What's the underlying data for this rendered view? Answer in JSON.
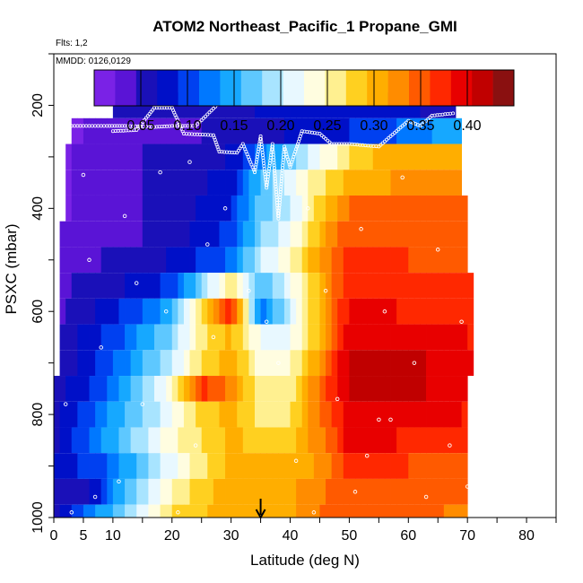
{
  "chart_data": {
    "type": "heatmap",
    "title": "ATOM2 Northeast_Pacific_1 Propane_GMI",
    "flights_label": "Flts: 1,2",
    "dates_label": "MMDD: 0126,0129",
    "xlabel": "Latitude (deg N)",
    "ylabel": "PSXC (mbar)",
    "xlim": [
      0,
      85
    ],
    "ylim": [
      1000,
      100
    ],
    "x_ticks": [
      0,
      5,
      10,
      20,
      30,
      40,
      50,
      60,
      70,
      80
    ],
    "y_ticks": [
      200,
      400,
      600,
      800,
      1000
    ],
    "colorbar": {
      "min": 0.0,
      "max": 0.45,
      "ticks": [
        0.05,
        0.1,
        0.15,
        0.2,
        0.25,
        0.3,
        0.35,
        0.4
      ],
      "tick_labels": [
        "0.05",
        "0.10",
        "0.15",
        "0.20",
        "0.25",
        "0.30",
        "0.35",
        "0.40"
      ],
      "colors": [
        "#7a22e6",
        "#5a14d6",
        "#1a10b8",
        "#0010c8",
        "#0040f0",
        "#0078ff",
        "#16a8ff",
        "#5ec8ff",
        "#a8e4ff",
        "#e8f8ff",
        "#fffde0",
        "#fff090",
        "#ffd020",
        "#ffae00",
        "#ff8c00",
        "#ff5a00",
        "#ff2800",
        "#e80000",
        "#c00000",
        "#8a1010"
      ]
    },
    "arrow_marker_latitude": 35,
    "pressure_levels": [
      200,
      250,
      300,
      350,
      400,
      450,
      500,
      550,
      600,
      650,
      700,
      750,
      800,
      850,
      900,
      950,
      1000
    ],
    "layers": [
      {
        "p": 200,
        "lat_range": [
          10,
          68
        ],
        "knots": [
          [
            10,
            0.06
          ],
          [
            20,
            0.05
          ],
          [
            30,
            0.06
          ],
          [
            40,
            0.08
          ],
          [
            50,
            0.09
          ],
          [
            60,
            0.07
          ],
          [
            68,
            0.06
          ]
        ]
      },
      {
        "p": 250,
        "lat_range": [
          3,
          69
        ],
        "knots": [
          [
            3,
            0.02
          ],
          [
            10,
            0.03
          ],
          [
            20,
            0.04
          ],
          [
            30,
            0.05
          ],
          [
            35,
            0.06
          ],
          [
            40,
            0.07
          ],
          [
            50,
            0.09
          ],
          [
            60,
            0.12
          ],
          [
            69,
            0.15
          ]
        ]
      },
      {
        "p": 300,
        "lat_range": [
          2,
          69
        ],
        "knots": [
          [
            2,
            0.02
          ],
          [
            10,
            0.04
          ],
          [
            20,
            0.05
          ],
          [
            30,
            0.07
          ],
          [
            35,
            0.12
          ],
          [
            40,
            0.17
          ],
          [
            45,
            0.22
          ],
          [
            50,
            0.27
          ],
          [
            55,
            0.3
          ],
          [
            60,
            0.3
          ],
          [
            69,
            0.3
          ]
        ]
      },
      {
        "p": 350,
        "lat_range": [
          2,
          69
        ],
        "knots": [
          [
            2,
            0.02
          ],
          [
            10,
            0.04
          ],
          [
            20,
            0.05
          ],
          [
            30,
            0.08
          ],
          [
            35,
            0.16
          ],
          [
            40,
            0.22
          ],
          [
            45,
            0.26
          ],
          [
            50,
            0.3
          ],
          [
            60,
            0.32
          ],
          [
            69,
            0.32
          ]
        ]
      },
      {
        "p": 400,
        "lat_range": [
          2,
          70
        ],
        "knots": [
          [
            2,
            0.02
          ],
          [
            10,
            0.04
          ],
          [
            20,
            0.05
          ],
          [
            30,
            0.09
          ],
          [
            35,
            0.17
          ],
          [
            40,
            0.2
          ],
          [
            45,
            0.28
          ],
          [
            50,
            0.34
          ],
          [
            60,
            0.35
          ],
          [
            70,
            0.34
          ]
        ]
      },
      {
        "p": 450,
        "lat_range": [
          1,
          70
        ],
        "knots": [
          [
            1,
            0.03
          ],
          [
            10,
            0.04
          ],
          [
            20,
            0.05
          ],
          [
            30,
            0.1
          ],
          [
            35,
            0.18
          ],
          [
            40,
            0.22
          ],
          [
            45,
            0.3
          ],
          [
            50,
            0.36
          ],
          [
            60,
            0.36
          ],
          [
            70,
            0.35
          ]
        ]
      },
      {
        "p": 500,
        "lat_range": [
          1,
          70
        ],
        "knots": [
          [
            1,
            0.03
          ],
          [
            10,
            0.05
          ],
          [
            20,
            0.07
          ],
          [
            30,
            0.12
          ],
          [
            35,
            0.2
          ],
          [
            40,
            0.24
          ],
          [
            45,
            0.32
          ],
          [
            50,
            0.37
          ],
          [
            60,
            0.36
          ],
          [
            70,
            0.35
          ]
        ]
      },
      {
        "p": 550,
        "lat_range": [
          1,
          71
        ],
        "knots": [
          [
            1,
            0.04
          ],
          [
            10,
            0.06
          ],
          [
            20,
            0.1
          ],
          [
            25,
            0.18
          ],
          [
            30,
            0.26
          ],
          [
            35,
            0.16
          ],
          [
            40,
            0.22
          ],
          [
            45,
            0.3
          ],
          [
            50,
            0.38
          ],
          [
            60,
            0.37
          ],
          [
            71,
            0.36
          ]
        ]
      },
      {
        "p": 600,
        "lat_range": [
          1,
          71
        ],
        "knots": [
          [
            1,
            0.04
          ],
          [
            10,
            0.08
          ],
          [
            20,
            0.15
          ],
          [
            25,
            0.28
          ],
          [
            30,
            0.38
          ],
          [
            35,
            0.12
          ],
          [
            40,
            0.2
          ],
          [
            45,
            0.3
          ],
          [
            50,
            0.39
          ],
          [
            60,
            0.38
          ],
          [
            71,
            0.36
          ]
        ]
      },
      {
        "p": 650,
        "lat_range": [
          1,
          71
        ],
        "knots": [
          [
            1,
            0.05
          ],
          [
            10,
            0.1
          ],
          [
            20,
            0.18
          ],
          [
            25,
            0.26
          ],
          [
            30,
            0.3
          ],
          [
            35,
            0.22
          ],
          [
            40,
            0.22
          ],
          [
            45,
            0.3
          ],
          [
            50,
            0.4
          ],
          [
            60,
            0.4
          ],
          [
            71,
            0.38
          ]
        ]
      },
      {
        "p": 700,
        "lat_range": [
          1,
          71
        ],
        "knots": [
          [
            1,
            0.05
          ],
          [
            10,
            0.11
          ],
          [
            20,
            0.2
          ],
          [
            25,
            0.27
          ],
          [
            30,
            0.31
          ],
          [
            35,
            0.24
          ],
          [
            40,
            0.24
          ],
          [
            45,
            0.32
          ],
          [
            50,
            0.41
          ],
          [
            60,
            0.41
          ],
          [
            71,
            0.39
          ]
        ]
      },
      {
        "p": 750,
        "lat_range": [
          0,
          70
        ],
        "knots": [
          [
            0,
            0.05
          ],
          [
            10,
            0.12
          ],
          [
            20,
            0.24
          ],
          [
            25,
            0.37
          ],
          [
            30,
            0.33
          ],
          [
            35,
            0.25
          ],
          [
            40,
            0.26
          ],
          [
            45,
            0.34
          ],
          [
            50,
            0.41
          ],
          [
            60,
            0.41
          ],
          [
            70,
            0.39
          ]
        ]
      },
      {
        "p": 800,
        "lat_range": [
          0,
          70
        ],
        "knots": [
          [
            0,
            0.06
          ],
          [
            10,
            0.14
          ],
          [
            20,
            0.22
          ],
          [
            25,
            0.28
          ],
          [
            30,
            0.3
          ],
          [
            35,
            0.26
          ],
          [
            40,
            0.27
          ],
          [
            45,
            0.34
          ],
          [
            50,
            0.4
          ],
          [
            60,
            0.4
          ],
          [
            70,
            0.38
          ]
        ]
      },
      {
        "p": 850,
        "lat_range": [
          0,
          70
        ],
        "knots": [
          [
            0,
            0.06
          ],
          [
            10,
            0.15
          ],
          [
            20,
            0.24
          ],
          [
            30,
            0.3
          ],
          [
            35,
            0.28
          ],
          [
            40,
            0.28
          ],
          [
            45,
            0.33
          ],
          [
            50,
            0.39
          ],
          [
            60,
            0.38
          ],
          [
            70,
            0.37
          ]
        ]
      },
      {
        "p": 900,
        "lat_range": [
          0,
          70
        ],
        "knots": [
          [
            0,
            0.07
          ],
          [
            10,
            0.12
          ],
          [
            20,
            0.22
          ],
          [
            30,
            0.3
          ],
          [
            35,
            0.3
          ],
          [
            40,
            0.3
          ],
          [
            45,
            0.32
          ],
          [
            50,
            0.37
          ],
          [
            60,
            0.36
          ],
          [
            70,
            0.35
          ]
        ]
      },
      {
        "p": 950,
        "lat_range": [
          0,
          70
        ],
        "knots": [
          [
            0,
            0.05
          ],
          [
            7,
            0.07
          ],
          [
            10,
            0.14
          ],
          [
            20,
            0.25
          ],
          [
            30,
            0.31
          ],
          [
            40,
            0.31
          ],
          [
            45,
            0.33
          ],
          [
            50,
            0.36
          ],
          [
            60,
            0.35
          ],
          [
            70,
            0.34
          ]
        ]
      },
      {
        "p": 1000,
        "lat_range": [
          0,
          70
        ],
        "knots": [
          [
            0,
            0.06
          ],
          [
            10,
            0.16
          ],
          [
            20,
            0.27
          ],
          [
            30,
            0.31
          ],
          [
            40,
            0.31
          ],
          [
            45,
            0.34
          ],
          [
            50,
            0.36
          ],
          [
            60,
            0.35
          ],
          [
            70,
            0.33
          ]
        ]
      }
    ],
    "flight_track": [
      {
        "lat": 10,
        "p": 250
      },
      {
        "lat": 14,
        "p": 248
      },
      {
        "lat": 17,
        "p": 205
      },
      {
        "lat": 20,
        "p": 205
      },
      {
        "lat": 22,
        "p": 255
      },
      {
        "lat": 27,
        "p": 258
      },
      {
        "lat": 28,
        "p": 290
      },
      {
        "lat": 31,
        "p": 292
      },
      {
        "lat": 32,
        "p": 275
      },
      {
        "lat": 34,
        "p": 330
      },
      {
        "lat": 35,
        "p": 260
      },
      {
        "lat": 36,
        "p": 360
      },
      {
        "lat": 37,
        "p": 275
      },
      {
        "lat": 38,
        "p": 420
      },
      {
        "lat": 39,
        "p": 280
      },
      {
        "lat": 40,
        "p": 320
      },
      {
        "lat": 42,
        "p": 250
      },
      {
        "lat": 45,
        "p": 255
      },
      {
        "lat": 47,
        "p": 275
      },
      {
        "lat": 50,
        "p": 275
      },
      {
        "lat": 55,
        "p": 280
      },
      {
        "lat": 58,
        "p": 250
      },
      {
        "lat": 60,
        "p": 230
      },
      {
        "lat": 62,
        "p": 240
      },
      {
        "lat": 64,
        "p": 220
      },
      {
        "lat": 68,
        "p": 215
      }
    ],
    "flight_track_2": [
      {
        "lat": 3,
        "p": 240
      },
      {
        "lat": 5,
        "p": 240
      },
      {
        "lat": 7,
        "p": 240
      },
      {
        "lat": 9,
        "p": 240
      },
      {
        "lat": 12,
        "p": 240
      },
      {
        "lat": 17,
        "p": 242
      },
      {
        "lat": 20,
        "p": 240
      },
      {
        "lat": 24,
        "p": 240
      },
      {
        "lat": 28,
        "p": 195
      },
      {
        "lat": 31,
        "p": 190
      },
      {
        "lat": 33,
        "p": 192
      }
    ],
    "scatter_points": [
      {
        "lat": 5,
        "p": 335
      },
      {
        "lat": 6,
        "p": 500
      },
      {
        "lat": 8,
        "p": 670
      },
      {
        "lat": 7,
        "p": 960
      },
      {
        "lat": 12,
        "p": 415
      },
      {
        "lat": 14,
        "p": 545
      },
      {
        "lat": 15,
        "p": 780
      },
      {
        "lat": 18,
        "p": 330
      },
      {
        "lat": 19,
        "p": 600
      },
      {
        "lat": 23,
        "p": 310
      },
      {
        "lat": 24,
        "p": 860
      },
      {
        "lat": 26,
        "p": 470
      },
      {
        "lat": 27,
        "p": 650
      },
      {
        "lat": 29,
        "p": 400
      },
      {
        "lat": 33,
        "p": 560
      },
      {
        "lat": 36,
        "p": 620
      },
      {
        "lat": 38,
        "p": 700
      },
      {
        "lat": 41,
        "p": 890
      },
      {
        "lat": 43,
        "p": 400
      },
      {
        "lat": 46,
        "p": 560
      },
      {
        "lat": 48,
        "p": 770
      },
      {
        "lat": 52,
        "p": 440
      },
      {
        "lat": 53,
        "p": 880
      },
      {
        "lat": 56,
        "p": 600
      },
      {
        "lat": 57,
        "p": 810
      },
      {
        "lat": 59,
        "p": 340
      },
      {
        "lat": 61,
        "p": 700
      },
      {
        "lat": 63,
        "p": 960
      },
      {
        "lat": 65,
        "p": 480
      },
      {
        "lat": 67,
        "p": 860
      },
      {
        "lat": 69,
        "p": 620
      },
      {
        "lat": 70,
        "p": 940
      },
      {
        "lat": 2,
        "p": 780
      },
      {
        "lat": 3,
        "p": 990
      },
      {
        "lat": 11,
        "p": 930
      },
      {
        "lat": 21,
        "p": 990
      },
      {
        "lat": 44,
        "p": 990
      },
      {
        "lat": 51,
        "p": 950
      },
      {
        "lat": 55,
        "p": 810
      }
    ]
  }
}
